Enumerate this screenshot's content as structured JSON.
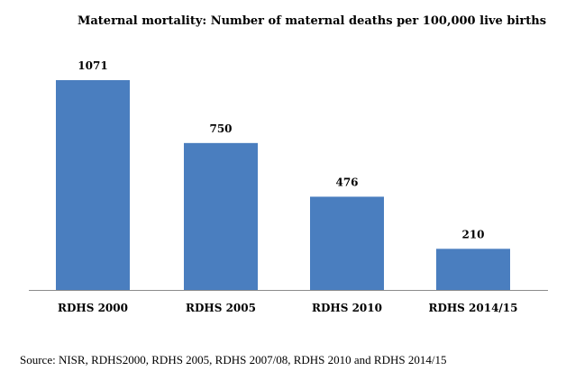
{
  "chart_data": {
    "type": "bar",
    "title": "Maternal mortality: Number of maternal deaths per 100,000 live births",
    "categories": [
      "RDHS 2000",
      "RDHS 2005",
      "RDHS 2010",
      "RDHS 2014/15"
    ],
    "values": [
      1071,
      750,
      476,
      210
    ],
    "value_labels": [
      "1071",
      "750",
      "476",
      "210"
    ],
    "xlabel": "",
    "ylabel": "",
    "ylim": [
      0,
      1100
    ],
    "grid": false,
    "legend": "none",
    "bar_color": "#4a7ebf"
  },
  "source_text": "Source: NISR, RDHS2000, RDHS 2005, RDHS 2007/08, RDHS 2010 and RDHS 2014/15"
}
